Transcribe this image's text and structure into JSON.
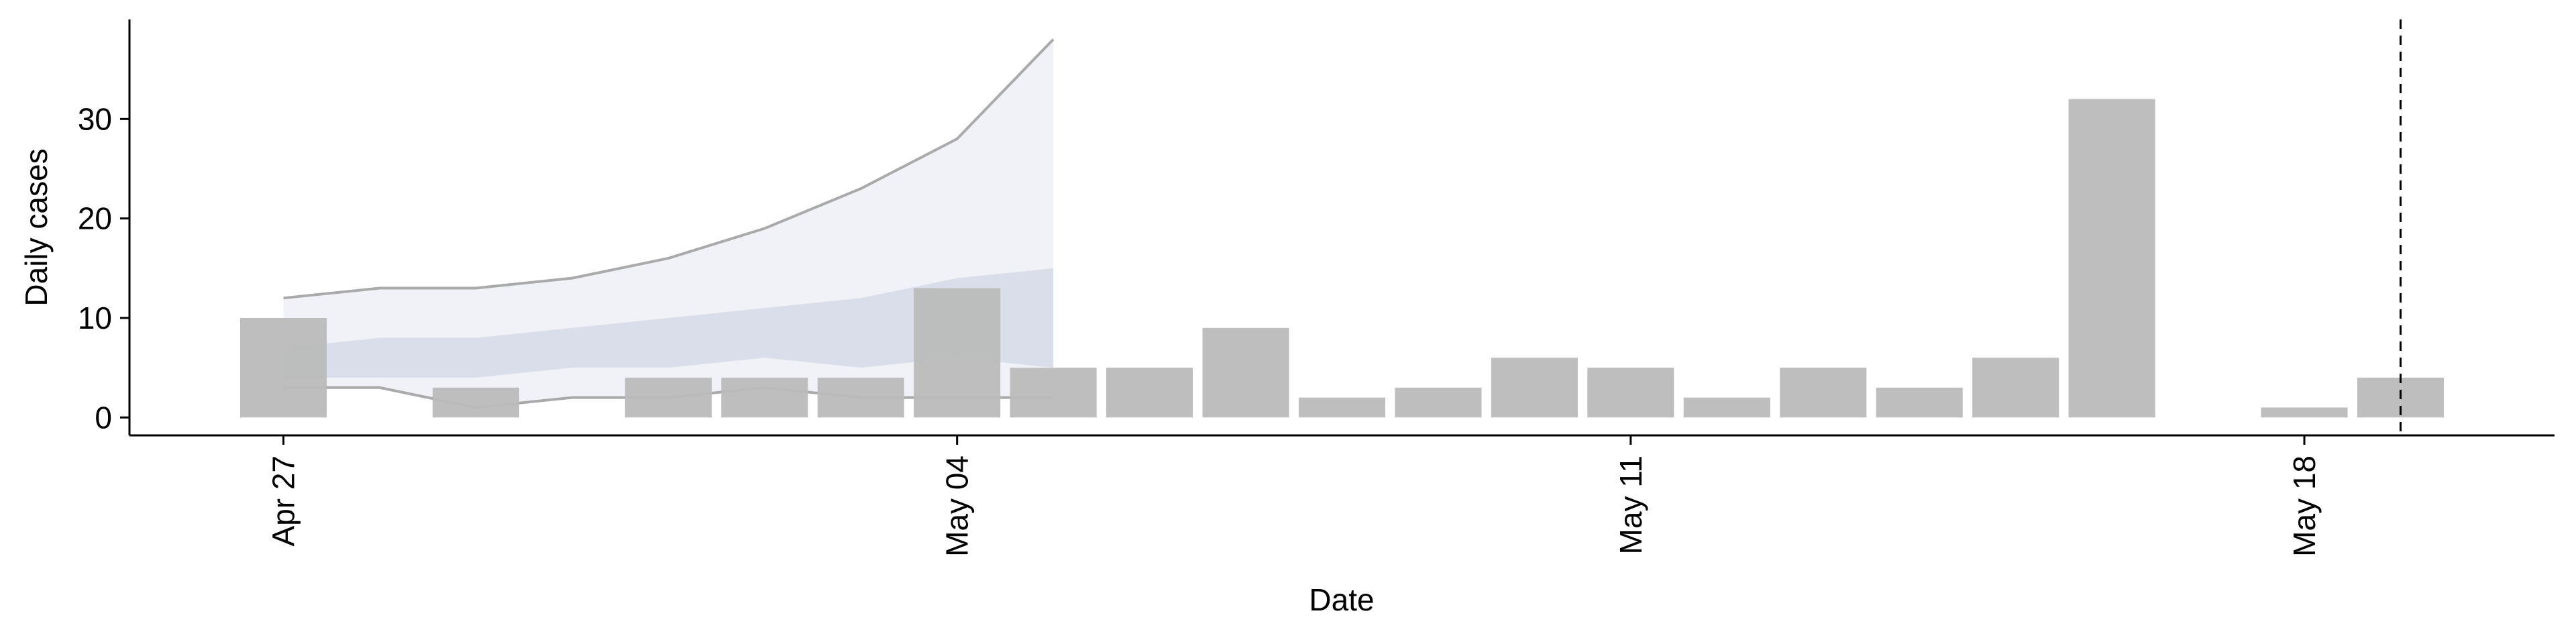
{
  "chart_data": {
    "type": "bar",
    "xlabel": "Date",
    "ylabel": "Daily cases",
    "categories": [
      "Apr 27",
      null,
      null,
      null,
      null,
      null,
      null,
      "May 04",
      null,
      null,
      null,
      null,
      null,
      null,
      "May 11",
      null,
      null,
      null,
      null,
      null,
      null,
      "May 18",
      null
    ],
    "values": [
      10,
      0,
      3,
      0,
      4,
      4,
      4,
      13,
      5,
      5,
      9,
      2,
      3,
      6,
      5,
      2,
      5,
      3,
      6,
      32,
      0,
      1,
      4
    ],
    "color": "#bbbbbb",
    "bands": [
      {
        "lower": [
          3,
          3,
          1,
          2,
          2,
          3,
          2,
          2,
          2
        ],
        "upper": [
          12,
          13,
          13,
          14,
          16,
          19,
          23,
          28,
          38
        ],
        "color": "#eef0f6",
        "edge_color": "#aaaaaa"
      },
      {
        "lower": [
          4,
          4,
          4,
          5,
          5,
          6,
          5,
          6,
          5
        ],
        "upper": [
          7,
          8,
          8,
          9,
          10,
          11,
          12,
          14,
          15
        ],
        "color": "#d6dae7"
      }
    ],
    "vline": 22,
    "xlim": [
      -1.6,
      23.6
    ],
    "ylim": [
      -1.8,
      40
    ],
    "yticks": [
      0,
      10,
      20,
      30
    ]
  }
}
